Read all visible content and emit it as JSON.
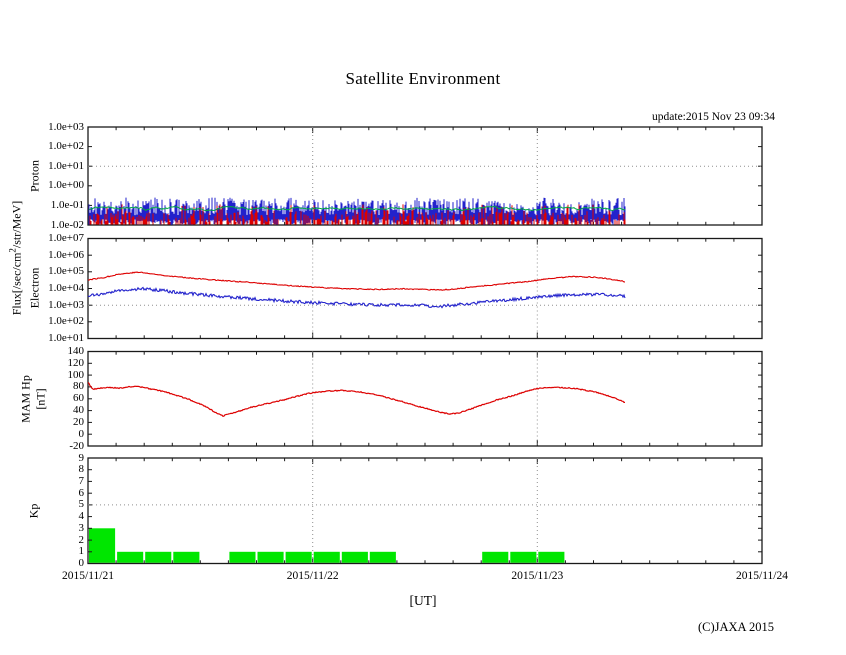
{
  "title": "Satellite Environment",
  "update_text": "update:2015 Nov 23 09:34",
  "copyright": "(C)JAXA 2015",
  "x_axis": {
    "label": "[UT]",
    "dates": [
      "2015/11/21",
      "2015/11/22",
      "2015/11/23",
      "2015/11/24"
    ],
    "minor_tick_hours": 3
  },
  "flux_axis_label": {
    "prefix": "Flux[/sec/cm",
    "sup": "2",
    "suffix": "/str/MeV]"
  },
  "chart_data": [
    {
      "type": "line",
      "name": "proton",
      "axis_label": "Proton",
      "yscale": "log",
      "ylim": [
        0.01,
        1000
      ],
      "ytick_labels": [
        "1.0e+03",
        "1.0e+02",
        "1.0e+01",
        "1.0e+00",
        "1.0e-01",
        "1.0e-02"
      ],
      "hgrid_at": 10,
      "data_end_day": 2.39,
      "description": "very noisy proton flux traces fluctuating around 1.0e-01",
      "series": [
        {
          "name": "proton-band",
          "color": "#2222cc",
          "style": "noise-band",
          "log_low": [
            -2.0,
            -1.7
          ],
          "log_high": [
            -1.5,
            -0.72
          ]
        },
        {
          "name": "proton-spikes",
          "color": "#dd0000",
          "style": "noise-spikes",
          "log_base": -2.0,
          "log_peak_max": -0.95,
          "density": 0.55
        },
        {
          "name": "proton-mid",
          "color": "#00aa44",
          "style": "noise-line",
          "log_level": -1.16,
          "log_noise": 0.07
        }
      ]
    },
    {
      "type": "line",
      "name": "electron",
      "axis_label": "Electron",
      "yscale": "log",
      "ylim": [
        10,
        10000000
      ],
      "ytick_labels": [
        "1.0e+07",
        "1.0e+06",
        "1.0e+05",
        "1.0e+04",
        "1.0e+03",
        "1.0e+02",
        "1.0e+01"
      ],
      "hgrid_at": 1000,
      "data_end_day": 2.39,
      "series": [
        {
          "name": "electron-high",
          "color": "#dd0000",
          "noise_decades": 0.03,
          "points": [
            [
              0,
              33000
            ],
            [
              0.07,
              45000
            ],
            [
              0.13,
              70000
            ],
            [
              0.2,
              90000
            ],
            [
              0.23,
              95000
            ],
            [
              0.3,
              70000
            ],
            [
              0.4,
              50000
            ],
            [
              0.5,
              38000
            ],
            [
              0.6,
              30000
            ],
            [
              0.7,
              24000
            ],
            [
              0.8,
              19000
            ],
            [
              0.9,
              15000
            ],
            [
              1.0,
              12000
            ],
            [
              1.1,
              10500
            ],
            [
              1.2,
              9200
            ],
            [
              1.3,
              8800
            ],
            [
              1.4,
              9600
            ],
            [
              1.5,
              8600
            ],
            [
              1.57,
              8000
            ],
            [
              1.65,
              10000
            ],
            [
              1.75,
              14000
            ],
            [
              1.85,
              19000
            ],
            [
              1.95,
              26000
            ],
            [
              2.05,
              38000
            ],
            [
              2.15,
              52000
            ],
            [
              2.25,
              48000
            ],
            [
              2.32,
              38000
            ],
            [
              2.39,
              26000
            ]
          ]
        },
        {
          "name": "electron-low",
          "color": "#2222cc",
          "noise_decades": 0.09,
          "points": [
            [
              0,
              3500
            ],
            [
              0.07,
              4800
            ],
            [
              0.13,
              7000
            ],
            [
              0.2,
              9000
            ],
            [
              0.25,
              9500
            ],
            [
              0.32,
              7800
            ],
            [
              0.4,
              5800
            ],
            [
              0.5,
              4300
            ],
            [
              0.6,
              3300
            ],
            [
              0.7,
              2600
            ],
            [
              0.8,
              2100
            ],
            [
              0.9,
              1700
            ],
            [
              1.0,
              1450
            ],
            [
              1.1,
              1250
            ],
            [
              1.2,
              1100
            ],
            [
              1.3,
              1050
            ],
            [
              1.4,
              1050
            ],
            [
              1.5,
              950
            ],
            [
              1.57,
              850
            ],
            [
              1.65,
              1100
            ],
            [
              1.75,
              1500
            ],
            [
              1.85,
              2000
            ],
            [
              1.95,
              2600
            ],
            [
              2.05,
              3400
            ],
            [
              2.15,
              4200
            ],
            [
              2.25,
              4400
            ],
            [
              2.32,
              4100
            ],
            [
              2.39,
              3300
            ]
          ]
        }
      ]
    },
    {
      "type": "line",
      "name": "mam-hp",
      "axis_label": "MAM Hp",
      "axis_sublabel": "[nT]",
      "yscale": "linear",
      "ylim": [
        -20,
        140
      ],
      "ytick_step": 20,
      "data_end_day": 2.39,
      "series": [
        {
          "name": "hp",
          "color": "#dd0000",
          "noise": 0.9,
          "points": [
            [
              0,
              88
            ],
            [
              0.02,
              76
            ],
            [
              0.06,
              78
            ],
            [
              0.1,
              79
            ],
            [
              0.14,
              78
            ],
            [
              0.18,
              80
            ],
            [
              0.22,
              81
            ],
            [
              0.26,
              78
            ],
            [
              0.3,
              75
            ],
            [
              0.35,
              71
            ],
            [
              0.4,
              65
            ],
            [
              0.45,
              59
            ],
            [
              0.5,
              51
            ],
            [
              0.54,
              43
            ],
            [
              0.57,
              36
            ],
            [
              0.6,
              31
            ],
            [
              0.63,
              34
            ],
            [
              0.68,
              40
            ],
            [
              0.73,
              46
            ],
            [
              0.8,
              52
            ],
            [
              0.87,
              58
            ],
            [
              0.93,
              64
            ],
            [
              0.98,
              69
            ],
            [
              1.02,
              71
            ],
            [
              1.07,
              73
            ],
            [
              1.12,
              74
            ],
            [
              1.17,
              73
            ],
            [
              1.22,
              71
            ],
            [
              1.28,
              67
            ],
            [
              1.34,
              61
            ],
            [
              1.4,
              55
            ],
            [
              1.46,
              48
            ],
            [
              1.52,
              42
            ],
            [
              1.57,
              37
            ],
            [
              1.61,
              34
            ],
            [
              1.65,
              36
            ],
            [
              1.7,
              42
            ],
            [
              1.76,
              50
            ],
            [
              1.82,
              58
            ],
            [
              1.88,
              64
            ],
            [
              1.93,
              70
            ],
            [
              1.97,
              75
            ],
            [
              2.0,
              77
            ],
            [
              2.05,
              79
            ],
            [
              2.1,
              79
            ],
            [
              2.14,
              78
            ],
            [
              2.18,
              77
            ],
            [
              2.22,
              74
            ],
            [
              2.26,
              71
            ],
            [
              2.3,
              67
            ],
            [
              2.34,
              62
            ],
            [
              2.37,
              57
            ],
            [
              2.4,
              52
            ]
          ]
        }
      ]
    },
    {
      "type": "bar",
      "name": "kp",
      "axis_label": "Kp",
      "yscale": "linear",
      "ylim": [
        0,
        9
      ],
      "ytick_step": 1,
      "hgrid_at": 5,
      "bar_color": "#00e600",
      "interval_hours": 3,
      "values_by_day": [
        [
          3,
          1,
          1,
          1,
          0,
          1,
          1,
          1
        ],
        [
          1,
          1,
          1,
          0,
          0,
          0,
          1,
          1
        ],
        [
          1,
          0,
          0
        ]
      ]
    }
  ]
}
